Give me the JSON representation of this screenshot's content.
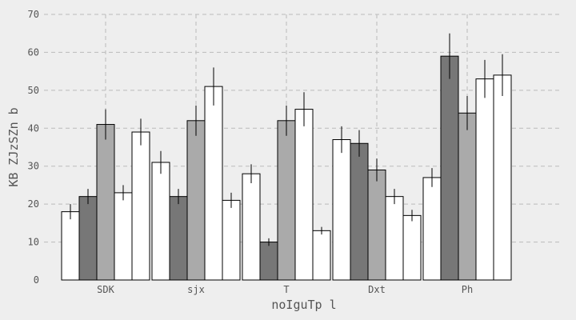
{
  "chart_data": {
    "type": "bar",
    "xlabel": "noIguTp l",
    "ylabel": "KB  ZJzSZn b",
    "categories": [
      "SDK",
      "sjx",
      "T",
      "Dxt",
      "Ph"
    ],
    "ylim": [
      0,
      70
    ],
    "yticks": [
      0,
      10,
      20,
      30,
      40,
      50,
      60,
      70
    ],
    "grid": true,
    "series": [
      {
        "color": "#ffffff",
        "values": [
          18,
          31,
          28,
          37,
          27
        ],
        "errors": [
          2,
          3,
          2.5,
          3.5,
          2.5
        ]
      },
      {
        "color": "#777777",
        "values": [
          22,
          22,
          10,
          36,
          59
        ],
        "errors": [
          2,
          2,
          1,
          3.5,
          6
        ]
      },
      {
        "color": "#aaaaaa",
        "values": [
          41,
          42,
          42,
          29,
          44
        ],
        "errors": [
          4,
          4,
          4,
          3,
          4.5
        ]
      },
      {
        "color": "#ffffff",
        "values": [
          23,
          51,
          45,
          22,
          53
        ],
        "errors": [
          2,
          5,
          4.5,
          2,
          5
        ]
      },
      {
        "color": "#ffffff",
        "values": [
          39,
          21,
          13,
          17,
          54
        ],
        "errors": [
          3.5,
          2,
          1,
          1.5,
          5.5
        ]
      }
    ]
  }
}
